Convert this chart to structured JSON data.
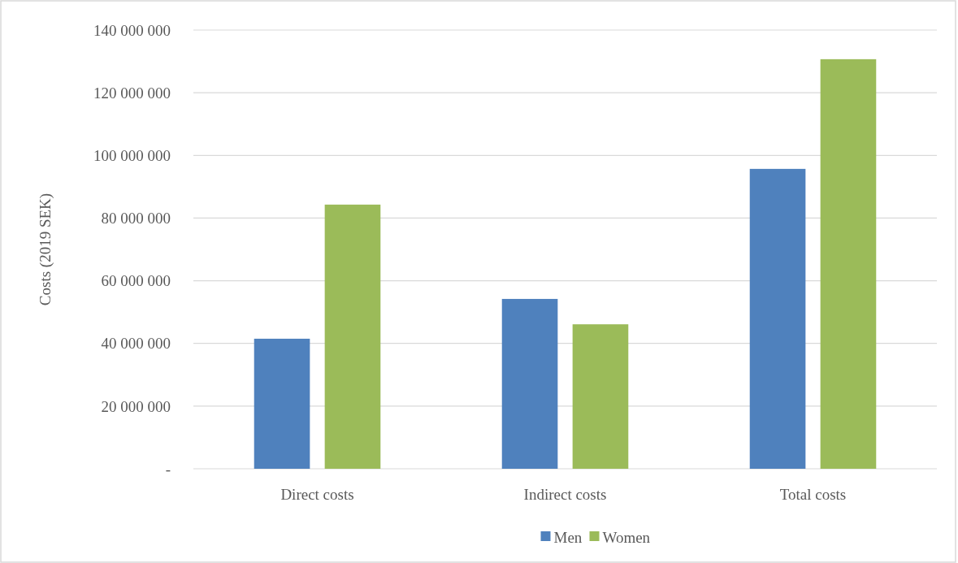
{
  "chart_data": {
    "type": "bar",
    "ylabel": "Costs (2019 SEK)",
    "categories": [
      "Direct costs",
      "Indirect costs",
      "Total costs"
    ],
    "series": [
      {
        "name": "Men",
        "color": "#4f81bd",
        "values": [
          41500000,
          54200000,
          95700000
        ]
      },
      {
        "name": "Women",
        "color": "#9bbb59",
        "values": [
          84300000,
          46100000,
          130700000
        ]
      }
    ],
    "ylim": [
      0,
      140000000
    ],
    "yticks": [
      {
        "value": 0,
        "label": "-"
      },
      {
        "value": 20000000,
        "label": "20 000 000"
      },
      {
        "value": 40000000,
        "label": "40 000 000"
      },
      {
        "value": 60000000,
        "label": "60 000 000"
      },
      {
        "value": 80000000,
        "label": "80 000 000"
      },
      {
        "value": 100000000,
        "label": "100 000 000"
      },
      {
        "value": 120000000,
        "label": "120 000 000"
      },
      {
        "value": 140000000,
        "label": "140 000 000"
      }
    ],
    "grid": "y",
    "legend": "bottom"
  }
}
